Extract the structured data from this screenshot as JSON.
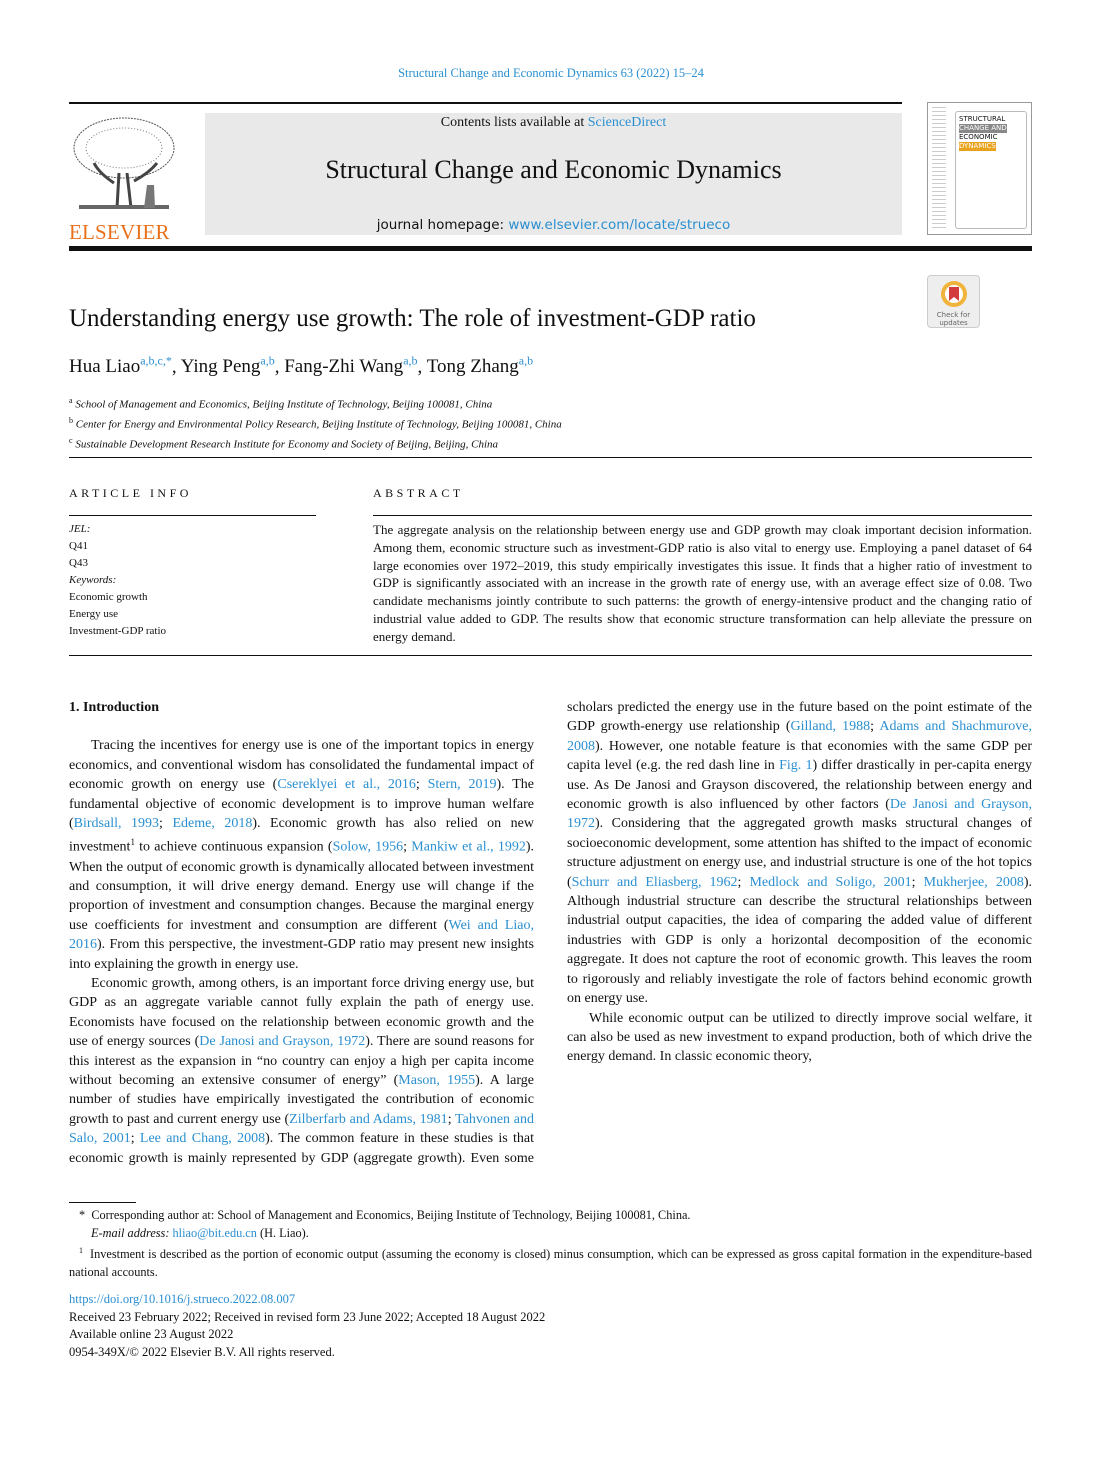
{
  "running_head": "Structural Change and Economic Dynamics 63 (2022) 15–24",
  "masthead": {
    "publisher_logo_text": "ELSEVIER",
    "contents_prefix": "Contents lists available at ",
    "contents_link": "ScienceDirect",
    "journal_title": "Structural Change and Economic Dynamics",
    "homepage_prefix": "journal homepage: ",
    "homepage_link": "www.elsevier.com/locate/strueco",
    "cover_text": [
      "STRUCTURAL",
      "CHANGE AND",
      "ECONOMIC",
      "DYNAMICS"
    ]
  },
  "article": {
    "title": "Understanding energy use growth: The role of investment-GDP ratio",
    "check_updates": "Check for updates",
    "authors": [
      {
        "name": "Hua Liao",
        "sup": "a,b,c,*"
      },
      {
        "name": "Ying Peng",
        "sup": "a,b"
      },
      {
        "name": "Fang-Zhi Wang",
        "sup": "a,b"
      },
      {
        "name": "Tong Zhang",
        "sup": "a,b"
      }
    ],
    "affiliations": [
      {
        "sup": "a",
        "text": "School of Management and Economics, Beijing Institute of Technology, Beijing 100081, China"
      },
      {
        "sup": "b",
        "text": "Center for Energy and Environmental Policy Research, Beijing Institute of Technology, Beijing 100081, China"
      },
      {
        "sup": "c",
        "text": "Sustainable Development Research Institute for Economy and Society of Beijing, Beijing, China"
      }
    ]
  },
  "article_info": {
    "heading": "ARTICLE INFO",
    "jel_label": "JEL:",
    "jel": [
      "Q41",
      "Q43"
    ],
    "keywords_label": "Keywords:",
    "keywords": [
      "Economic growth",
      "Energy use",
      "Investment-GDP ratio"
    ]
  },
  "abstract": {
    "heading": "ABSTRACT",
    "text": "The aggregate analysis on the relationship between energy use and GDP growth may cloak important decision information. Among them, economic structure such as investment-GDP ratio is also vital to energy use. Employing a panel dataset of 64 large economies over 1972–2019, this study empirically investigates this issue. It finds that a higher ratio of investment to GDP is significantly associated with an increase in the growth rate of energy use, with an average effect size of 0.08. Two candidate mechanisms jointly contribute to such patterns: the growth of energy-intensive product and the changing ratio of industrial value added to GDP. The results show that economic structure transformation can help alleviate the pressure on energy demand."
  },
  "body": {
    "section_heading": "1.  Introduction",
    "paragraphs": [
      [
        {
          "t": "Tracing the incentives for energy use is one of the important topics in energy economics, and conventional wisdom has consolidated the fundamental impact of economic growth on energy use ("
        },
        {
          "link": "Csereklyei et al., 2016"
        },
        {
          "t": "; "
        },
        {
          "link": "Stern, 2019"
        },
        {
          "t": "). The fundamental objective of economic development is to improve human welfare ("
        },
        {
          "link": "Birdsall, 1993"
        },
        {
          "t": "; "
        },
        {
          "link": "Edeme, 2018"
        },
        {
          "t": "). Economic growth has also relied on new investment"
        },
        {
          "sup": "1"
        },
        {
          "t": " to achieve continuous expansion ("
        },
        {
          "link": "Solow, 1956"
        },
        {
          "t": "; "
        },
        {
          "link": "Mankiw et al., 1992"
        },
        {
          "t": "). When the output of economic growth is dynamically allocated between investment and consumption, it will drive energy demand. Energy use will change if the proportion of investment and consumption changes. Because the marginal energy use coefficients for investment and consumption are different ("
        },
        {
          "link": "Wei and Liao, 2016"
        },
        {
          "t": "). From this perspective, the investment-GDP ratio may present new insights into explaining the growth in energy use."
        }
      ],
      [
        {
          "t": "Economic growth, among others, is an important force driving energy use, but GDP as an aggregate variable cannot fully explain the path of energy use. Economists have focused on the relationship between economic growth and the use of energy sources ("
        },
        {
          "link": "De Janosi and Grayson, 1972"
        },
        {
          "t": "). There are sound reasons for this interest as the expansion in “no country can enjoy a high per capita income without becoming an extensive consumer of energy” ("
        },
        {
          "link": "Mason, 1955"
        },
        {
          "t": "). A large number of studies have empirically investigated the contribution of economic growth to past and current energy use ("
        },
        {
          "link": "Zilberfarb and Adams, 1981"
        },
        {
          "t": "; "
        },
        {
          "link": "Tahvonen and Salo, 2001"
        },
        {
          "t": "; "
        },
        {
          "link": "Lee and Chang, 2008"
        },
        {
          "t": "). The common feature in these studies is that economic growth is mainly represented by GDP (aggregate growth). Even some scholars predicted the energy use in the future based on the point estimate of the GDP growth-energy use relationship ("
        },
        {
          "link": "Gilland, 1988"
        },
        {
          "t": "; "
        },
        {
          "link": "Adams and Shachmurove, 2008"
        },
        {
          "t": "). However, one notable feature is that economies with the same GDP per capita level (e.g. the red dash line in "
        },
        {
          "link": "Fig. 1"
        },
        {
          "t": ") differ drastically in per-capita energy use. As De Janosi and Grayson discovered, the relationship between energy and economic growth is also influenced by other factors ("
        },
        {
          "link": "De Janosi and Grayson, 1972"
        },
        {
          "t": "). Considering that the aggregated growth masks structural changes of socioeconomic development, some attention has shifted to the impact of economic structure adjustment on energy use, and industrial structure is one of the hot topics ("
        },
        {
          "link": "Schurr and Eliasberg, 1962"
        },
        {
          "t": "; "
        },
        {
          "link": "Medlock and Soligo, 2001"
        },
        {
          "t": "; "
        },
        {
          "link": "Mukherjee, 2008"
        },
        {
          "t": "). Although industrial structure can describe the structural relationships between industrial output capacities, the idea of comparing the added value of different industries with GDP is only a horizontal decomposition of the economic aggregate. It does not capture the root of economic growth. This leaves the room to rigorously and reliably investigate the role of factors behind economic growth on energy use."
        }
      ],
      [
        {
          "t": "While economic output can be utilized to directly improve social welfare, it can also be used as new investment to expand production, both of which drive the energy demand. In classic economic theory,"
        }
      ]
    ]
  },
  "footnotes": {
    "corresponding_mark": "*",
    "corresponding": "Corresponding author at: School of Management and Economics, Beijing Institute of Technology, Beijing 100081, China.",
    "email_label": "E-mail address: ",
    "email": "hliao@bit.edu.cn",
    "email_suffix": " (H. Liao).",
    "fn1_mark": "1",
    "fn1": "Investment is described as the portion of economic output (assuming the economy is closed) minus consumption, which can be expressed as gross capital formation in the expenditure-based national accounts."
  },
  "publication": {
    "doi": "https://doi.org/10.1016/j.strueco.2022.08.007",
    "history": "Received 23 February 2022; Received in revised form 23 June 2022; Accepted 18 August 2022",
    "online": "Available online 23 August 2022",
    "copyright": "0954-349X/© 2022 Elsevier B.V. All rights reserved."
  },
  "colors": {
    "link": "#2a8fd0",
    "elsevier_orange": "#e9711c",
    "banner_bg": "#e9e9e9"
  }
}
